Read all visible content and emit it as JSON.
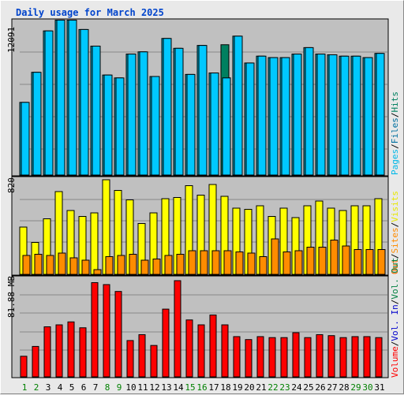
{
  "title": "Daily usage for March 2025",
  "colors": {
    "hits": "#00c8ff",
    "files": "#00a8c8",
    "pages": "#008060",
    "visits": "#ffff00",
    "sites": "#ff8c00",
    "volume": "#ff0000",
    "vol_in": "#0000cc",
    "vol_out": "#008040",
    "weekend": "#008000",
    "weekday": "#000000",
    "background": "#c0c0c0"
  },
  "chart_data": [
    {
      "type": "bar",
      "categories": [
        "1",
        "2",
        "3",
        "4",
        "5",
        "6",
        "7",
        "8",
        "9",
        "10",
        "11",
        "12",
        "13",
        "14",
        "15",
        "16",
        "17",
        "18",
        "19",
        "20",
        "21",
        "22",
        "23",
        "24",
        "25",
        "26",
        "27",
        "28",
        "29",
        "30",
        "31"
      ],
      "weekend_days": [
        "1",
        "2",
        "8",
        "9",
        "15",
        "16",
        "22",
        "23",
        "29",
        "30"
      ],
      "max_label": "12091",
      "legend": [
        "Hits",
        "Files",
        "Pages"
      ],
      "ylim": [
        0,
        12800
      ],
      "series": [
        {
          "name": "Hits",
          "values": [
            5988,
            8466,
            11878,
            12766,
            12766,
            11994,
            10624,
            8242,
            8004,
            9970,
            10152,
            8122,
            11256,
            10442,
            8292,
            10680,
            8412,
            8004,
            11446,
            9232,
            9798,
            9678,
            9678,
            9970,
            10500,
            9970,
            9910,
            9796,
            9796,
            9678,
            10024
          ]
        },
        {
          "name": "Files",
          "values": [
            5988,
            8466,
            11878,
            12766,
            12766,
            11994,
            10624,
            8242,
            8004,
            9970,
            10152,
            8122,
            11256,
            10442,
            8292,
            10680,
            8412,
            8004,
            11446,
            9232,
            9798,
            9678,
            9678,
            9970,
            10500,
            9970,
            9910,
            9796,
            9796,
            9678,
            10024
          ]
        },
        {
          "name": "Pages",
          "values": [
            0,
            0,
            0,
            0,
            0,
            0,
            0,
            0,
            0,
            0,
            0,
            0,
            0,
            0,
            0,
            0,
            0,
            10738,
            0,
            0,
            0,
            0,
            0,
            0,
            0,
            0,
            0,
            0,
            0,
            0,
            0
          ]
        }
      ]
    },
    {
      "type": "bar",
      "categories": [
        "1",
        "2",
        "3",
        "4",
        "5",
        "6",
        "7",
        "8",
        "9",
        "10",
        "11",
        "12",
        "13",
        "14",
        "15",
        "16",
        "17",
        "18",
        "19",
        "20",
        "21",
        "22",
        "23",
        "24",
        "25",
        "26",
        "27",
        "28",
        "29",
        "30",
        "31"
      ],
      "max_label": "820",
      "legend": [
        "Visits",
        "Sites",
        "Out",
        "Vol."
      ],
      "ylim": [
        0,
        820
      ],
      "series": [
        {
          "name": "Visits",
          "values": [
            400,
            270,
            470,
            700,
            540,
            490,
            520,
            800,
            710,
            630,
            430,
            520,
            640,
            650,
            750,
            670,
            760,
            660,
            560,
            550,
            580,
            490,
            560,
            480,
            580,
            620,
            560,
            540,
            580,
            580,
            640
          ]
        },
        {
          "name": "Sites",
          "values": [
            160,
            170,
            160,
            180,
            140,
            120,
            40,
            150,
            160,
            170,
            120,
            130,
            160,
            170,
            200,
            200,
            200,
            200,
            190,
            180,
            150,
            300,
            190,
            200,
            230,
            230,
            290,
            240,
            210,
            210,
            210
          ]
        }
      ]
    },
    {
      "type": "bar",
      "categories": [
        "1",
        "2",
        "3",
        "4",
        "5",
        "6",
        "7",
        "8",
        "9",
        "10",
        "11",
        "12",
        "13",
        "14",
        "15",
        "16",
        "17",
        "18",
        "19",
        "20",
        "21",
        "22",
        "23",
        "24",
        "25",
        "26",
        "27",
        "28",
        "29",
        "30",
        "31"
      ],
      "max_label": "81.88 MB",
      "legend": [
        "Volume",
        "Vol. In"
      ],
      "ylim": [
        0,
        102
      ],
      "series": [
        {
          "name": "Volume",
          "values": [
            21,
            31,
            51,
            53,
            56,
            50,
            96,
            94,
            87,
            37,
            43,
            32,
            69,
            98,
            58,
            53,
            63,
            53,
            41,
            38,
            41,
            40,
            40,
            45,
            40,
            43,
            42,
            40,
            41,
            41,
            40
          ]
        }
      ]
    }
  ],
  "day_labels": [
    "1",
    "2",
    "3",
    "4",
    "5",
    "6",
    "7",
    "8",
    "9",
    "10",
    "11",
    "12",
    "13",
    "14",
    "15",
    "16",
    "17",
    "18",
    "19",
    "20",
    "21",
    "22",
    "23",
    "24",
    "25",
    "26",
    "27",
    "28",
    "29",
    "30",
    "31"
  ]
}
